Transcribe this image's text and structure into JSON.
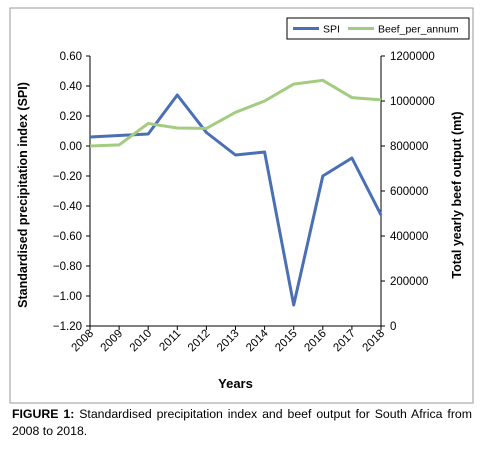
{
  "chart_data": {
    "type": "line",
    "categories": [
      "2008",
      "2009",
      "2010",
      "2011",
      "2012",
      "2013",
      "2014",
      "2015",
      "2016",
      "2017",
      "2018"
    ],
    "series": [
      {
        "name": "SPI",
        "axis": "left",
        "color": "#4a6fb4",
        "values": [
          0.06,
          0.07,
          0.08,
          0.34,
          0.09,
          -0.06,
          -0.04,
          -1.06,
          -0.2,
          -0.08,
          -0.46
        ]
      },
      {
        "name": "Beef_per_annum",
        "axis": "right",
        "color": "#a3cc80",
        "values": [
          800000,
          805000,
          900000,
          880000,
          878000,
          950000,
          1000000,
          1075000,
          1092000,
          1015000,
          1005000
        ]
      }
    ],
    "xlabel": "Years",
    "ylabel_left": "Standardised precipitation index (SPI)",
    "ylabel_right": "Total yearly beef output (mt)",
    "ylim_left": [
      -1.2,
      0.6
    ],
    "ylim_right": [
      0,
      1200000
    ],
    "yticks_left": [
      "0.60",
      "0.40",
      "0.20",
      "0.00",
      "−0.20",
      "−0.40",
      "−0.60",
      "−0.80",
      "−1.00",
      "−1.20"
    ],
    "yticks_right": [
      "1200000",
      "1000000",
      "800000",
      "600000",
      "400000",
      "200000",
      "0"
    ],
    "legend_position": "top-right",
    "grid": false
  },
  "caption": {
    "label": "FIGURE 1:",
    "text": " Standardised precipitation index and beef output for South Africa from 2008 to 2018."
  }
}
